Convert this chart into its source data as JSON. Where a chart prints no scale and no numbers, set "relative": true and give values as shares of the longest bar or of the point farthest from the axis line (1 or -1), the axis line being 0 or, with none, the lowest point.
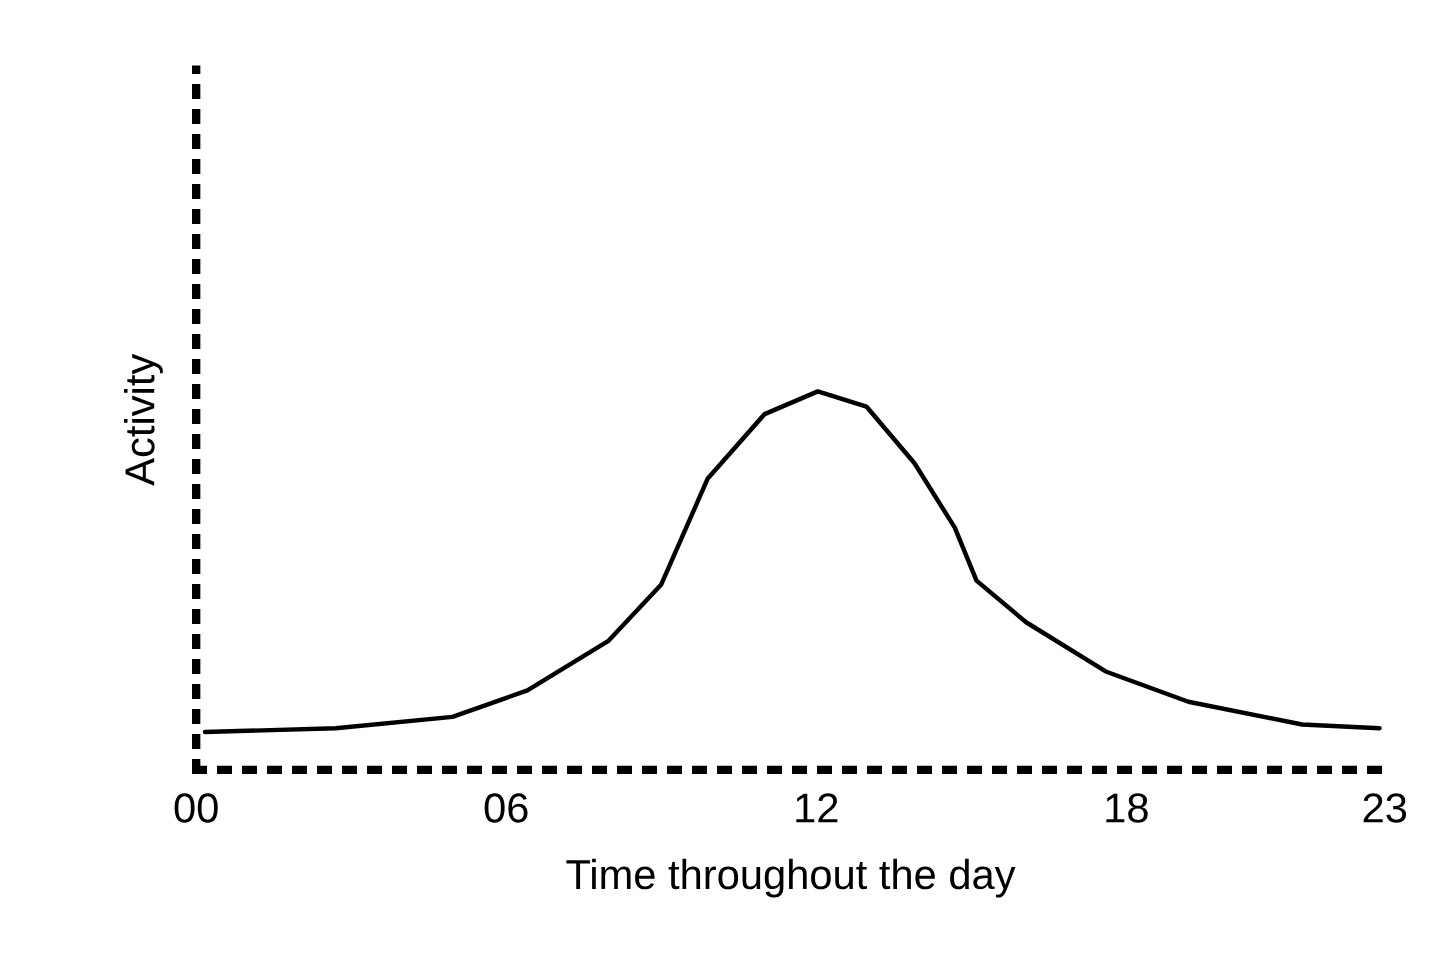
{
  "chart_data": {
    "type": "line",
    "relative": true,
    "xlabel": "Time throughout the day",
    "ylabel": "Activity",
    "x": [
      0.17,
      2.7,
      4.96,
      6.41,
      7.97,
      9.0,
      9.9,
      11.0,
      12.03,
      12.97,
      13.9,
      14.68,
      15.1,
      16.06,
      17.6,
      19.2,
      21.4,
      22.9
    ],
    "series": [
      {
        "color": "#000000",
        "values": [
          0.1,
          0.11,
          0.14,
          0.21,
          0.34,
          0.49,
          0.77,
          0.94,
          1.0,
          0.96,
          0.81,
          0.64,
          0.5,
          0.39,
          0.26,
          0.18,
          0.12,
          0.11
        ]
      }
    ],
    "xlim": [
      0,
      23
    ],
    "xticks": [
      {
        "value": 0,
        "label": "00"
      },
      {
        "value": 6,
        "label": "06"
      },
      {
        "value": 12,
        "label": "12"
      },
      {
        "value": 18,
        "label": "18"
      },
      {
        "value": 23,
        "label": "23"
      }
    ],
    "line_style": "solid",
    "marker": "none",
    "grid": false,
    "legend": false
  }
}
